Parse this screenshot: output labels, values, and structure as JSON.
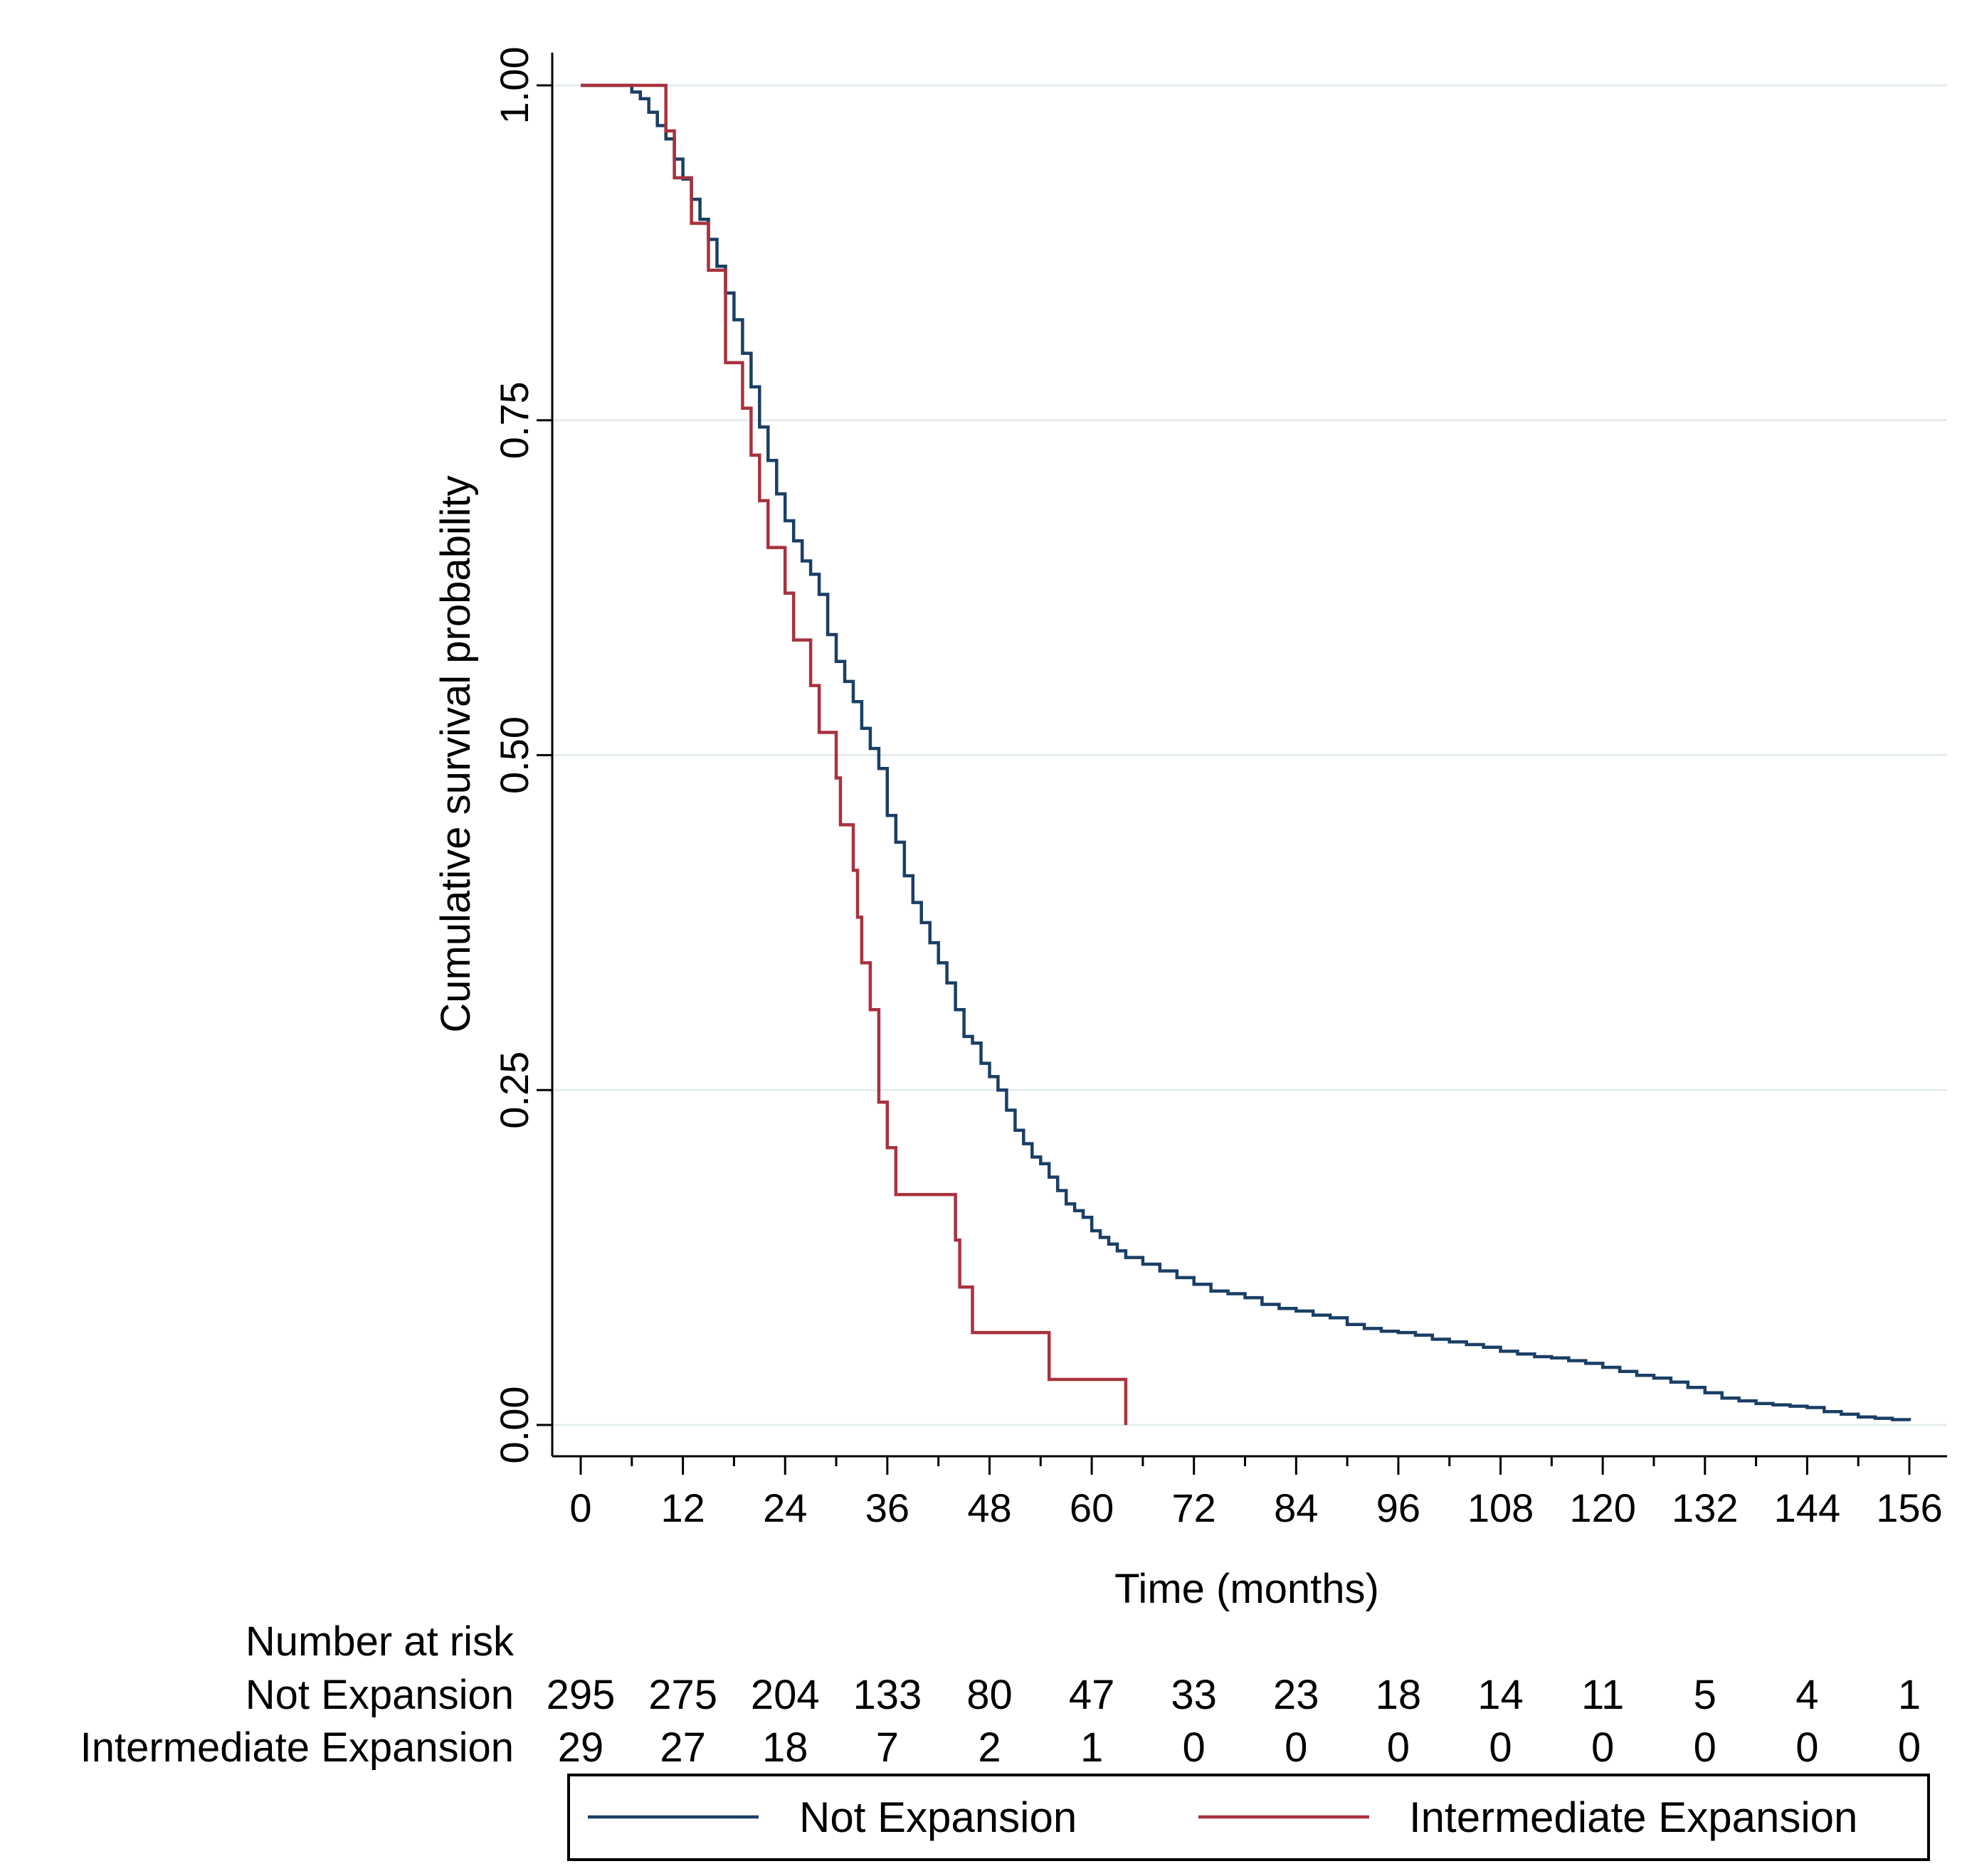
{
  "chart_data": {
    "type": "line",
    "subtype": "kaplan-meier step curve with number-at-risk table",
    "title": "",
    "xlabel": "Time (months)",
    "ylabel": "Cumulative survival probability",
    "xlim": [
      0,
      156
    ],
    "ylim": [
      0,
      1
    ],
    "x_ticks": [
      0,
      12,
      24,
      36,
      48,
      60,
      72,
      84,
      96,
      108,
      120,
      132,
      144,
      156
    ],
    "y_ticks": [
      "0.00",
      "0.25",
      "0.50",
      "0.75",
      "1.00"
    ],
    "grid": "horizontal",
    "legend_position": "bottom",
    "series": [
      {
        "name": "Not Expansion",
        "color": "#1a3f66",
        "points": [
          [
            0,
            1.0
          ],
          [
            5,
            1.0
          ],
          [
            6,
            0.995
          ],
          [
            7,
            0.99
          ],
          [
            8,
            0.98
          ],
          [
            9,
            0.97
          ],
          [
            10,
            0.96
          ],
          [
            11,
            0.945
          ],
          [
            12,
            0.93
          ],
          [
            13,
            0.915
          ],
          [
            14,
            0.9
          ],
          [
            15,
            0.885
          ],
          [
            16,
            0.865
          ],
          [
            17,
            0.845
          ],
          [
            18,
            0.825
          ],
          [
            19,
            0.8
          ],
          [
            20,
            0.775
          ],
          [
            21,
            0.745
          ],
          [
            22,
            0.72
          ],
          [
            23,
            0.695
          ],
          [
            24,
            0.675
          ],
          [
            25,
            0.66
          ],
          [
            26,
            0.645
          ],
          [
            27,
            0.635
          ],
          [
            28,
            0.62
          ],
          [
            29,
            0.59
          ],
          [
            30,
            0.57
          ],
          [
            31,
            0.555
          ],
          [
            32,
            0.54
          ],
          [
            33,
            0.52
          ],
          [
            34,
            0.505
          ],
          [
            35,
            0.49
          ],
          [
            36,
            0.455
          ],
          [
            37,
            0.435
          ],
          [
            38,
            0.41
          ],
          [
            39,
            0.39
          ],
          [
            40,
            0.375
          ],
          [
            41,
            0.36
          ],
          [
            42,
            0.345
          ],
          [
            43,
            0.33
          ],
          [
            44,
            0.31
          ],
          [
            45,
            0.29
          ],
          [
            46,
            0.285
          ],
          [
            47,
            0.27
          ],
          [
            48,
            0.26
          ],
          [
            49,
            0.25
          ],
          [
            50,
            0.235
          ],
          [
            51,
            0.22
          ],
          [
            52,
            0.21
          ],
          [
            53,
            0.2
          ],
          [
            54,
            0.195
          ],
          [
            55,
            0.185
          ],
          [
            56,
            0.175
          ],
          [
            57,
            0.165
          ],
          [
            58,
            0.16
          ],
          [
            59,
            0.155
          ],
          [
            60,
            0.145
          ],
          [
            61,
            0.14
          ],
          [
            62,
            0.135
          ],
          [
            63,
            0.13
          ],
          [
            64,
            0.125
          ],
          [
            66,
            0.12
          ],
          [
            68,
            0.115
          ],
          [
            70,
            0.11
          ],
          [
            72,
            0.105
          ],
          [
            74,
            0.1
          ],
          [
            76,
            0.098
          ],
          [
            78,
            0.095
          ],
          [
            80,
            0.09
          ],
          [
            82,
            0.087
          ],
          [
            84,
            0.085
          ],
          [
            86,
            0.082
          ],
          [
            88,
            0.08
          ],
          [
            90,
            0.075
          ],
          [
            92,
            0.072
          ],
          [
            94,
            0.07
          ],
          [
            96,
            0.069
          ],
          [
            98,
            0.067
          ],
          [
            100,
            0.064
          ],
          [
            102,
            0.062
          ],
          [
            104,
            0.06
          ],
          [
            106,
            0.058
          ],
          [
            108,
            0.055
          ],
          [
            110,
            0.053
          ],
          [
            112,
            0.051
          ],
          [
            114,
            0.05
          ],
          [
            116,
            0.048
          ],
          [
            118,
            0.046
          ],
          [
            120,
            0.043
          ],
          [
            122,
            0.04
          ],
          [
            124,
            0.037
          ],
          [
            126,
            0.035
          ],
          [
            128,
            0.032
          ],
          [
            130,
            0.028
          ],
          [
            132,
            0.024
          ],
          [
            134,
            0.02
          ],
          [
            136,
            0.018
          ],
          [
            138,
            0.016
          ],
          [
            140,
            0.015
          ],
          [
            142,
            0.014
          ],
          [
            144,
            0.013
          ],
          [
            146,
            0.01
          ],
          [
            148,
            0.008
          ],
          [
            150,
            0.006
          ],
          [
            152,
            0.005
          ],
          [
            154,
            0.004
          ],
          [
            156,
            0.003
          ]
        ]
      },
      {
        "name": "Intermediate Expansion",
        "color": "#a8323e",
        "points": [
          [
            0,
            1.0
          ],
          [
            10,
            1.0
          ],
          [
            10,
            0.966
          ],
          [
            11,
            0.966
          ],
          [
            11,
            0.931
          ],
          [
            13,
            0.931
          ],
          [
            13,
            0.897
          ],
          [
            15,
            0.897
          ],
          [
            15,
            0.862
          ],
          [
            17,
            0.862
          ],
          [
            17,
            0.793
          ],
          [
            19,
            0.793
          ],
          [
            19,
            0.759
          ],
          [
            20,
            0.759
          ],
          [
            20,
            0.724
          ],
          [
            21,
            0.724
          ],
          [
            21,
            0.69
          ],
          [
            22,
            0.69
          ],
          [
            22,
            0.655
          ],
          [
            24,
            0.655
          ],
          [
            24,
            0.621
          ],
          [
            25,
            0.621
          ],
          [
            25,
            0.586
          ],
          [
            27,
            0.586
          ],
          [
            27,
            0.552
          ],
          [
            28,
            0.552
          ],
          [
            28,
            0.517
          ],
          [
            30,
            0.517
          ],
          [
            30,
            0.483
          ],
          [
            30.5,
            0.483
          ],
          [
            30.5,
            0.448
          ],
          [
            32,
            0.448
          ],
          [
            32,
            0.414
          ],
          [
            32.5,
            0.414
          ],
          [
            32.5,
            0.379
          ],
          [
            33,
            0.379
          ],
          [
            33,
            0.345
          ],
          [
            34,
            0.345
          ],
          [
            34,
            0.31
          ],
          [
            35,
            0.31
          ],
          [
            35,
            0.241
          ],
          [
            36,
            0.241
          ],
          [
            36,
            0.207
          ],
          [
            37,
            0.207
          ],
          [
            37,
            0.172
          ],
          [
            44,
            0.172
          ],
          [
            44,
            0.138
          ],
          [
            44.5,
            0.138
          ],
          [
            44.5,
            0.103
          ],
          [
            46,
            0.103
          ],
          [
            46,
            0.069
          ],
          [
            55,
            0.069
          ],
          [
            55,
            0.034
          ],
          [
            64,
            0.034
          ],
          [
            64,
            0.0
          ]
        ]
      }
    ],
    "risk_table": {
      "header": "Number at risk",
      "times": [
        0,
        12,
        24,
        36,
        48,
        60,
        72,
        84,
        96,
        108,
        120,
        132,
        144,
        156
      ],
      "rows": [
        {
          "label": "Not Expansion",
          "values": [
            "295",
            "275",
            "204",
            "133",
            "80",
            "47",
            "33",
            "23",
            "18",
            "14",
            "11",
            "5",
            "4",
            "1"
          ]
        },
        {
          "label": "Intermediate Expansion",
          "values": [
            "29",
            "27",
            "18",
            "7",
            "2",
            "1",
            "0",
            "0",
            "0",
            "0",
            "0",
            "0",
            "0",
            "0"
          ]
        }
      ]
    },
    "legend": [
      {
        "label": "Not Expansion",
        "color": "#1a3f66"
      },
      {
        "label": "Intermediate Expansion",
        "color": "#a8323e"
      }
    ]
  }
}
